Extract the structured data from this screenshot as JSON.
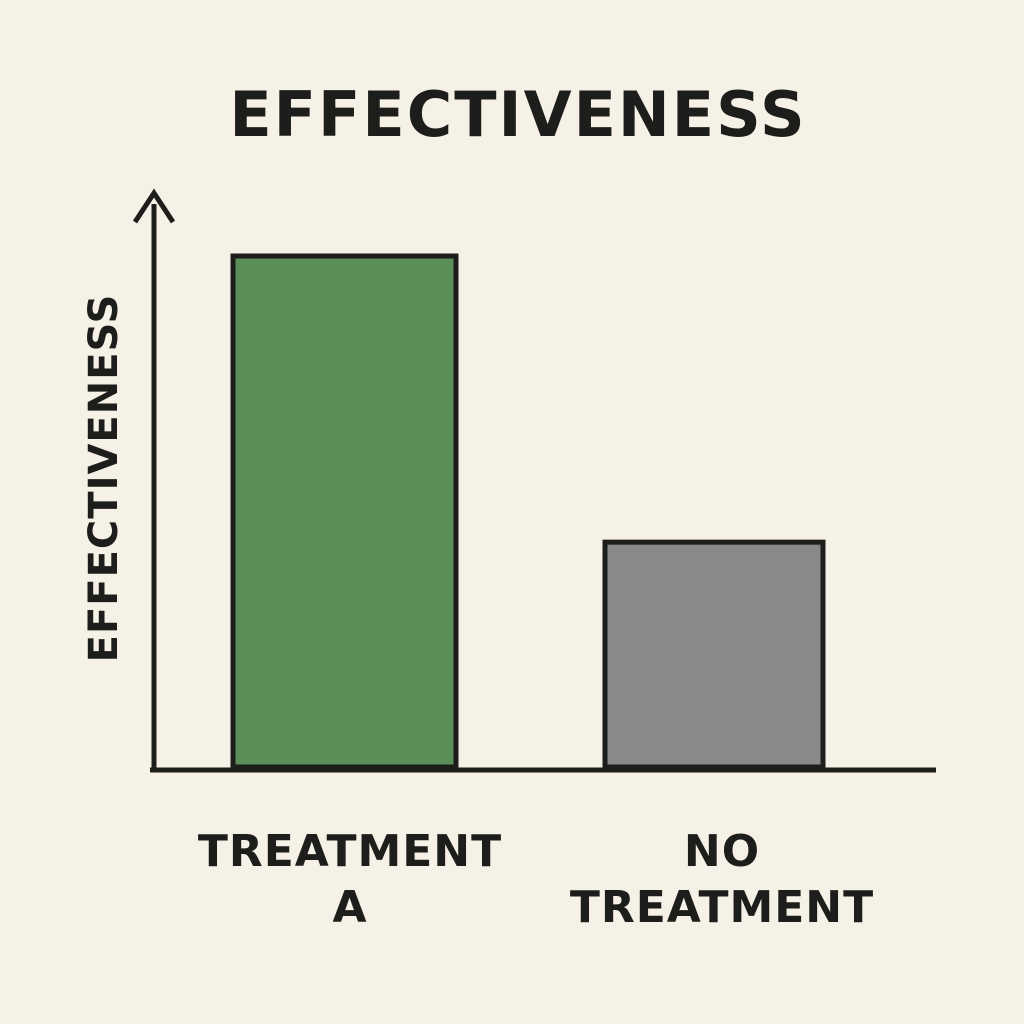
{
  "chart_data": {
    "type": "bar",
    "title": "EFFECTIVENESS",
    "xlabel": "",
    "ylabel": "EFFECTIVENESS",
    "categories": [
      [
        "TREATMENT",
        "A"
      ],
      [
        "NO",
        "TREATMENT"
      ]
    ],
    "values": [
      100,
      44
    ],
    "ylim": [
      0,
      100
    ],
    "colors": [
      "#5a9058",
      "#898989"
    ],
    "grid": false,
    "axis_color": "#1d1d1b"
  }
}
